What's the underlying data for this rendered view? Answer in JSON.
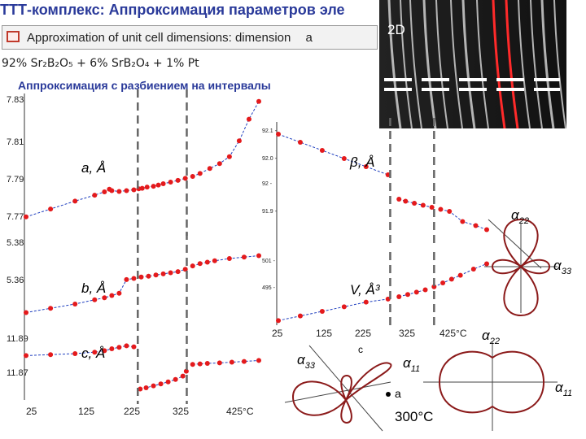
{
  "slide": {
    "title": "ТТТ-комплекс: Аппроксимация параметров эле",
    "banner": "Approximation of unit cell dimensions: dimension",
    "banner_suffix": "a",
    "composition": "92% Sr₂B₂O₅ + 6% SrB₂O₄ + 1% Pt",
    "method": "Аппроксимация с разбиением на интервалы",
    "inset_label": "2D",
    "polar_temp": "300°C"
  },
  "colors": {
    "points": "#e41a1c",
    "fit": "#1f3fbf",
    "dashed": "#666666",
    "lobe": "#8b1a1a",
    "heading": "#2a3a9a"
  },
  "chart_data": [
    {
      "type": "scatter",
      "label": "a, Å",
      "x_tick_labels": [
        "25",
        "125",
        "225",
        "325",
        "425°C"
      ],
      "y_tick_labels": [
        "7.83",
        "7.81",
        "7.79",
        "7.77"
      ],
      "ylim": [
        7.765,
        7.835
      ],
      "xlim": [
        25,
        500
      ],
      "x": [
        25,
        75,
        125,
        165,
        185,
        195,
        200,
        215,
        230,
        245,
        255,
        262,
        272,
        285,
        295,
        305,
        320,
        335,
        350,
        365,
        380,
        400,
        420,
        440,
        460,
        480,
        500
      ],
      "y": [
        7.7725,
        7.7765,
        7.7805,
        7.7835,
        7.7852,
        7.7865,
        7.7858,
        7.7854,
        7.7858,
        7.7862,
        7.7867,
        7.787,
        7.7876,
        7.788,
        7.7886,
        7.7893,
        7.7901,
        7.791,
        7.792,
        7.793,
        7.7945,
        7.797,
        7.7995,
        7.803,
        7.811,
        7.822,
        7.831
      ],
      "breaks": [
        253,
        353
      ]
    },
    {
      "type": "scatter",
      "label": "b, Å",
      "y_tick_labels": [
        "5.38",
        "5.36"
      ],
      "ylim": [
        5.355,
        5.385
      ],
      "xlim": [
        25,
        500
      ],
      "x": [
        25,
        75,
        125,
        165,
        185,
        200,
        215,
        230,
        245,
        260,
        275,
        290,
        305,
        320,
        335,
        350,
        365,
        380,
        395,
        410,
        440,
        470,
        500
      ],
      "y": [
        5.358,
        5.3595,
        5.361,
        5.3625,
        5.3632,
        5.364,
        5.3648,
        5.3696,
        5.37,
        5.3705,
        5.3708,
        5.3712,
        5.3716,
        5.372,
        5.3724,
        5.3732,
        5.3744,
        5.3752,
        5.3757,
        5.3762,
        5.377,
        5.3775,
        5.378
      ],
      "breaks": [
        253,
        353
      ]
    },
    {
      "type": "scatter",
      "label": "c, Å",
      "y_tick_labels": [
        "11.89",
        "11.87"
      ],
      "ylim": [
        11.865,
        11.895
      ],
      "xlim": [
        25,
        500
      ],
      "x": [
        25,
        75,
        125,
        165,
        185,
        200,
        215,
        230,
        245,
        258,
        270,
        285,
        300,
        315,
        330,
        345,
        352,
        365,
        380,
        395,
        420,
        445,
        470,
        500
      ],
      "y": [
        11.8832,
        11.8836,
        11.884,
        11.8846,
        11.8852,
        11.886,
        11.8866,
        11.8872,
        11.8868,
        11.8695,
        11.87,
        11.8708,
        11.8716,
        11.8724,
        11.8734,
        11.8748,
        11.8768,
        11.8796,
        11.8798,
        11.88,
        11.8802,
        11.8805,
        11.8808,
        11.8812
      ],
      "breaks": [
        253,
        353
      ]
    },
    {
      "type": "scatter",
      "label": "β, Å",
      "y_tick_labels": [
        "92.1",
        "92.0",
        "92",
        "91.9"
      ],
      "ylim": [
        91.85,
        92.15
      ],
      "xlim": [
        25,
        500
      ],
      "x": [
        25,
        75,
        125,
        175,
        225,
        275,
        300,
        315,
        335,
        355,
        375,
        395,
        415,
        445,
        475,
        500
      ],
      "y": [
        92.12,
        92.1,
        92.08,
        92.06,
        92.04,
        92.02,
        91.96,
        91.955,
        91.95,
        91.945,
        91.94,
        91.935,
        91.93,
        91.905,
        91.895,
        91.885
      ],
      "breaks": [
        280,
        380
      ]
    },
    {
      "type": "scatter",
      "label": "V, Å³",
      "x_tick_labels": [
        "25",
        "125",
        "225",
        "325",
        "425°C"
      ],
      "y_tick_labels": [
        "501",
        "495"
      ],
      "ylim": [
        493,
        502
      ],
      "xlim": [
        25,
        500
      ],
      "x": [
        25,
        75,
        125,
        175,
        225,
        275,
        300,
        320,
        340,
        360,
        380,
        400,
        420,
        440,
        470,
        500
      ],
      "y": [
        493.6,
        494.2,
        494.8,
        495.4,
        496.0,
        496.4,
        496.7,
        497.0,
        497.3,
        497.6,
        498.0,
        498.5,
        499.0,
        499.5,
        500.3,
        501.0
      ],
      "breaks": [
        280,
        380
      ]
    }
  ],
  "polar": {
    "top_labels": [
      "α",
      "22",
      "α",
      "33"
    ],
    "bottom_labels": [
      "α",
      "33",
      "α",
      "11",
      "a",
      "c",
      "α",
      "22",
      "α",
      "11"
    ]
  }
}
